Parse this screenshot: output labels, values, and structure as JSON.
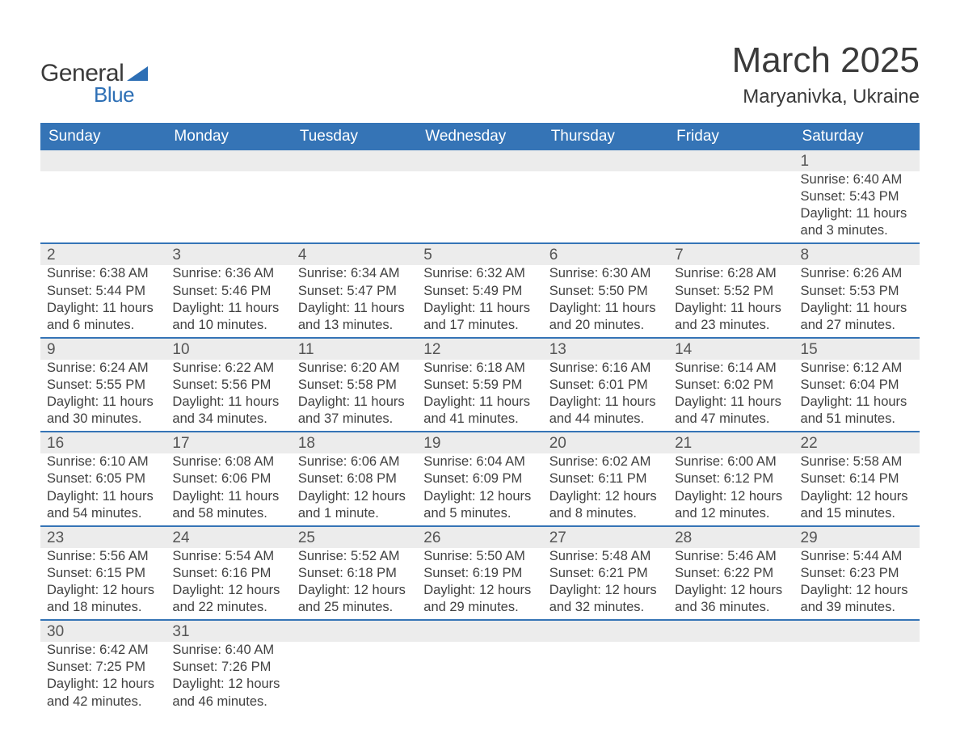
{
  "logo": {
    "text1": "General",
    "text2": "Blue",
    "tri_color": "#2d6fb5",
    "text1_color": "#3a3a3a"
  },
  "header": {
    "month_year": "March 2025",
    "location": "Maryanivka, Ukraine"
  },
  "calendar": {
    "header_bg": "#3574b6",
    "header_fg": "#ffffff",
    "daynum_bg": "#ececec",
    "separator_color": "#3574b6",
    "day_labels": [
      "Sunday",
      "Monday",
      "Tuesday",
      "Wednesday",
      "Thursday",
      "Friday",
      "Saturday"
    ],
    "weeks": [
      [
        null,
        null,
        null,
        null,
        null,
        null,
        {
          "n": "1",
          "sr": "6:40 AM",
          "ss": "5:43 PM",
          "dl": "11 hours and 3 minutes."
        }
      ],
      [
        {
          "n": "2",
          "sr": "6:38 AM",
          "ss": "5:44 PM",
          "dl": "11 hours and 6 minutes."
        },
        {
          "n": "3",
          "sr": "6:36 AM",
          "ss": "5:46 PM",
          "dl": "11 hours and 10 minutes."
        },
        {
          "n": "4",
          "sr": "6:34 AM",
          "ss": "5:47 PM",
          "dl": "11 hours and 13 minutes."
        },
        {
          "n": "5",
          "sr": "6:32 AM",
          "ss": "5:49 PM",
          "dl": "11 hours and 17 minutes."
        },
        {
          "n": "6",
          "sr": "6:30 AM",
          "ss": "5:50 PM",
          "dl": "11 hours and 20 minutes."
        },
        {
          "n": "7",
          "sr": "6:28 AM",
          "ss": "5:52 PM",
          "dl": "11 hours and 23 minutes."
        },
        {
          "n": "8",
          "sr": "6:26 AM",
          "ss": "5:53 PM",
          "dl": "11 hours and 27 minutes."
        }
      ],
      [
        {
          "n": "9",
          "sr": "6:24 AM",
          "ss": "5:55 PM",
          "dl": "11 hours and 30 minutes."
        },
        {
          "n": "10",
          "sr": "6:22 AM",
          "ss": "5:56 PM",
          "dl": "11 hours and 34 minutes."
        },
        {
          "n": "11",
          "sr": "6:20 AM",
          "ss": "5:58 PM",
          "dl": "11 hours and 37 minutes."
        },
        {
          "n": "12",
          "sr": "6:18 AM",
          "ss": "5:59 PM",
          "dl": "11 hours and 41 minutes."
        },
        {
          "n": "13",
          "sr": "6:16 AM",
          "ss": "6:01 PM",
          "dl": "11 hours and 44 minutes."
        },
        {
          "n": "14",
          "sr": "6:14 AM",
          "ss": "6:02 PM",
          "dl": "11 hours and 47 minutes."
        },
        {
          "n": "15",
          "sr": "6:12 AM",
          "ss": "6:04 PM",
          "dl": "11 hours and 51 minutes."
        }
      ],
      [
        {
          "n": "16",
          "sr": "6:10 AM",
          "ss": "6:05 PM",
          "dl": "11 hours and 54 minutes."
        },
        {
          "n": "17",
          "sr": "6:08 AM",
          "ss": "6:06 PM",
          "dl": "11 hours and 58 minutes."
        },
        {
          "n": "18",
          "sr": "6:06 AM",
          "ss": "6:08 PM",
          "dl": "12 hours and 1 minute."
        },
        {
          "n": "19",
          "sr": "6:04 AM",
          "ss": "6:09 PM",
          "dl": "12 hours and 5 minutes."
        },
        {
          "n": "20",
          "sr": "6:02 AM",
          "ss": "6:11 PM",
          "dl": "12 hours and 8 minutes."
        },
        {
          "n": "21",
          "sr": "6:00 AM",
          "ss": "6:12 PM",
          "dl": "12 hours and 12 minutes."
        },
        {
          "n": "22",
          "sr": "5:58 AM",
          "ss": "6:14 PM",
          "dl": "12 hours and 15 minutes."
        }
      ],
      [
        {
          "n": "23",
          "sr": "5:56 AM",
          "ss": "6:15 PM",
          "dl": "12 hours and 18 minutes."
        },
        {
          "n": "24",
          "sr": "5:54 AM",
          "ss": "6:16 PM",
          "dl": "12 hours and 22 minutes."
        },
        {
          "n": "25",
          "sr": "5:52 AM",
          "ss": "6:18 PM",
          "dl": "12 hours and 25 minutes."
        },
        {
          "n": "26",
          "sr": "5:50 AM",
          "ss": "6:19 PM",
          "dl": "12 hours and 29 minutes."
        },
        {
          "n": "27",
          "sr": "5:48 AM",
          "ss": "6:21 PM",
          "dl": "12 hours and 32 minutes."
        },
        {
          "n": "28",
          "sr": "5:46 AM",
          "ss": "6:22 PM",
          "dl": "12 hours and 36 minutes."
        },
        {
          "n": "29",
          "sr": "5:44 AM",
          "ss": "6:23 PM",
          "dl": "12 hours and 39 minutes."
        }
      ],
      [
        {
          "n": "30",
          "sr": "6:42 AM",
          "ss": "7:25 PM",
          "dl": "12 hours and 42 minutes."
        },
        {
          "n": "31",
          "sr": "6:40 AM",
          "ss": "7:26 PM",
          "dl": "12 hours and 46 minutes."
        },
        null,
        null,
        null,
        null,
        null
      ]
    ],
    "labels": {
      "sunrise": "Sunrise:",
      "sunset": "Sunset:",
      "daylight": "Daylight:"
    }
  }
}
